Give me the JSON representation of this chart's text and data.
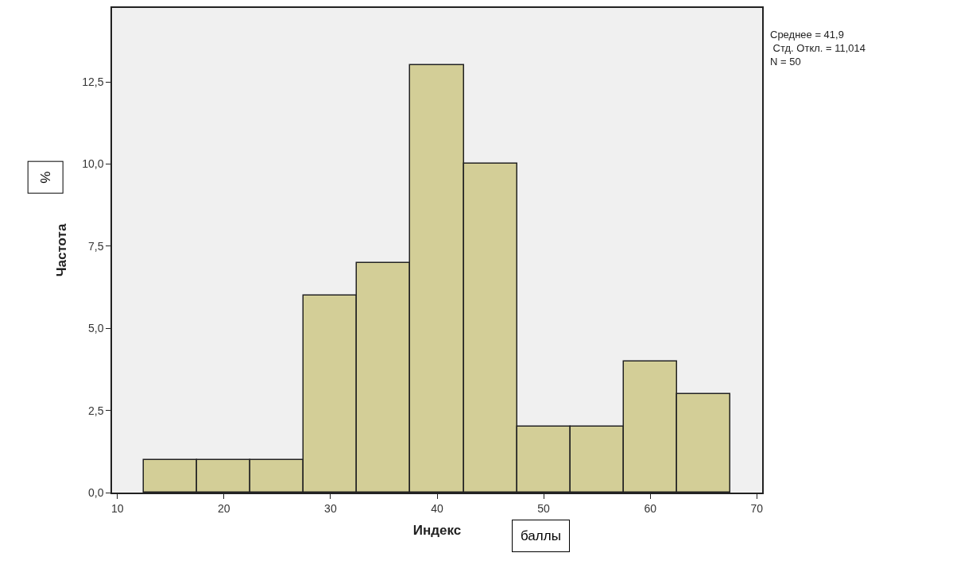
{
  "chart_data": {
    "type": "histogram",
    "bins": [
      12.5,
      17.5,
      22.5,
      27.5,
      32.5,
      37.5,
      42.5,
      47.5,
      52.5,
      57.5,
      62.5,
      67.5
    ],
    "values": [
      1,
      1,
      1,
      6,
      7,
      13,
      10,
      2,
      2,
      4,
      3
    ],
    "color": "#d3ce97",
    "xlabel": "Индекс",
    "ylabel": "Частота",
    "xlim": [
      9.5,
      70.5
    ],
    "xticks": [
      10,
      20,
      30,
      40,
      50,
      60,
      70
    ],
    "ylim": [
      0,
      14.75
    ],
    "yticks": [
      {
        "value": 0,
        "label": "0,0"
      },
      {
        "value": 2.5,
        "label": "2,5"
      },
      {
        "value": 5,
        "label": "5,0"
      },
      {
        "value": 7.5,
        "label": "7,5"
      },
      {
        "value": 10,
        "label": "10,0"
      },
      {
        "value": 12.5,
        "label": "12,5"
      }
    ],
    "grid": false,
    "annotations": [
      "Среднее = 41,9\n Стд. Откл. = 11,014\nN = 50",
      "%",
      "баллы"
    ]
  }
}
